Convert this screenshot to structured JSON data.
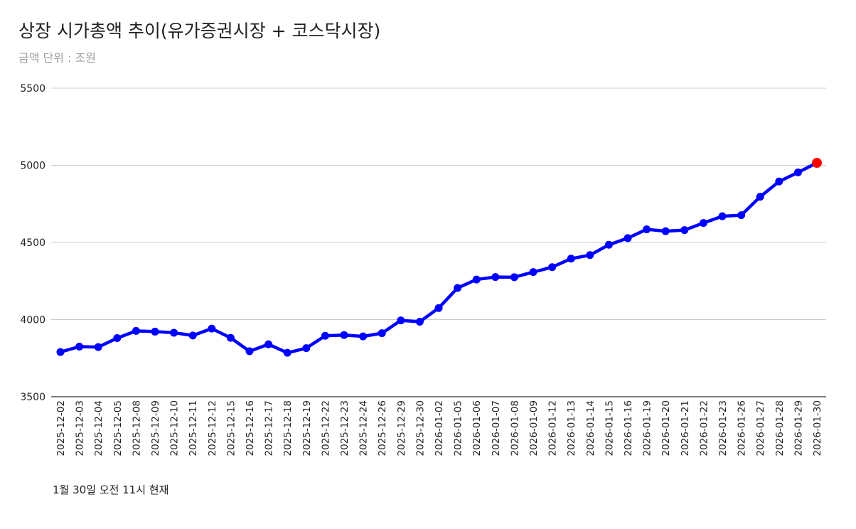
{
  "chart_data": {
    "type": "line",
    "title": "상장 시가총액 추이(유가증권시장 + 코스닥시장)",
    "subtitle": "금액 단위 : 조원",
    "footnote": "1월 30일 오전 11시 현재",
    "xlabel": "",
    "ylabel": "",
    "ylim": [
      3500,
      5500
    ],
    "yticks": [
      3500,
      4000,
      4500,
      5000,
      5500
    ],
    "grid": true,
    "legend": "none",
    "x": [
      "2025-12-02",
      "2025-12-03",
      "2025-12-04",
      "2025-12-05",
      "2025-12-08",
      "2025-12-09",
      "2025-12-10",
      "2025-12-11",
      "2025-12-12",
      "2025-12-15",
      "2025-12-16",
      "2025-12-17",
      "2025-12-18",
      "2025-12-19",
      "2025-12-22",
      "2025-12-23",
      "2025-12-24",
      "2025-12-26",
      "2025-12-29",
      "2025-12-30",
      "2026-01-02",
      "2026-01-05",
      "2026-01-06",
      "2026-01-07",
      "2026-01-08",
      "2026-01-09",
      "2026-01-12",
      "2026-01-13",
      "2026-01-14",
      "2026-01-15",
      "2026-01-16",
      "2026-01-19",
      "2026-01-20",
      "2026-01-21",
      "2026-01-22",
      "2026-01-23",
      "2026-01-26",
      "2026-01-27",
      "2026-01-28",
      "2026-01-29",
      "2026-01-30"
    ],
    "series": [
      {
        "values": [
          3790,
          3825,
          3822,
          3880,
          3927,
          3922,
          3915,
          3897,
          3942,
          3882,
          3795,
          3840,
          3785,
          3815,
          3895,
          3900,
          3891,
          3912,
          3995,
          3986,
          4075,
          4205,
          4260,
          4276,
          4275,
          4308,
          4340,
          4395,
          4418,
          4485,
          4528,
          4585,
          4573,
          4580,
          4626,
          4670,
          4677,
          4796,
          4895,
          4954,
          5016
        ]
      }
    ],
    "colors": {
      "line": "#0000ff",
      "point": "#0000ff",
      "highlight_point": "#ff0000",
      "grid": "#cccccc",
      "axis_text": "#222222"
    },
    "highlight_last_point": true
  }
}
